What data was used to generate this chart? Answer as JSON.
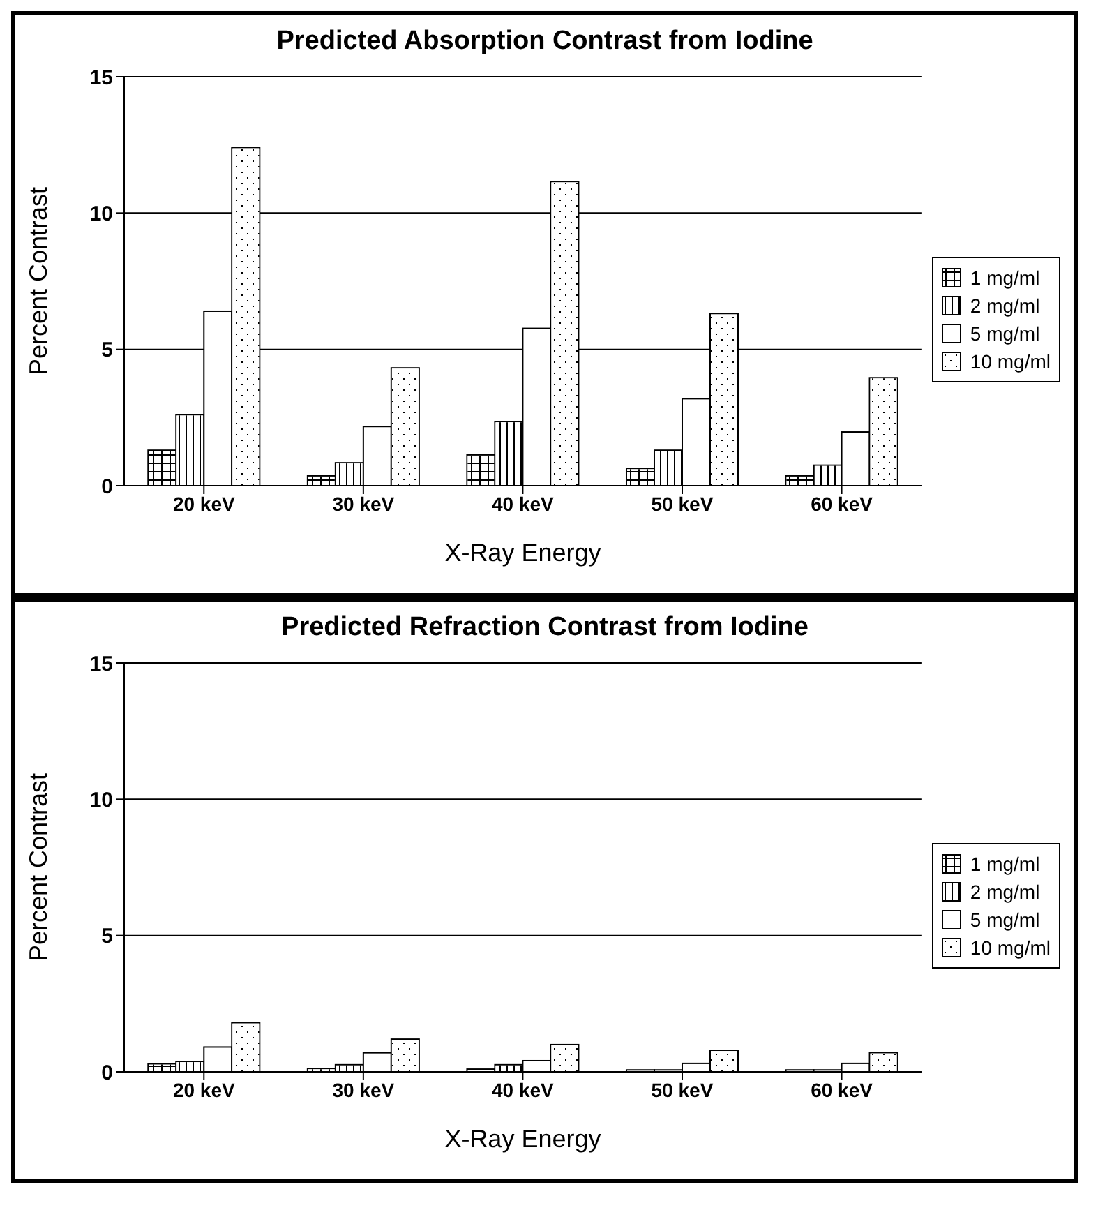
{
  "chart_data": [
    {
      "type": "bar",
      "title": "Predicted Absorption Contrast from Iodine",
      "xlabel": "X-Ray Energy",
      "ylabel": "Percent Contrast",
      "categories": [
        "20 keV",
        "30 keV",
        "40 keV",
        "50 keV",
        "60 keV"
      ],
      "series": [
        {
          "name": "1 mg/ml",
          "color": "#ffffff",
          "values": [
            1.3,
            0.36,
            1.13,
            0.63,
            0.36
          ]
        },
        {
          "name": "2 mg/ml",
          "color": "#ffffff",
          "values": [
            2.6,
            0.84,
            2.35,
            1.3,
            0.75
          ]
        },
        {
          "name": "5 mg/ml",
          "color": "#ffffff",
          "values": [
            6.4,
            2.17,
            5.77,
            3.19,
            1.97
          ]
        },
        {
          "name": "10 mg/ml",
          "color": "#ffffff",
          "values": [
            12.4,
            4.32,
            11.15,
            6.31,
            3.96
          ]
        }
      ],
      "ylim": [
        0,
        15
      ],
      "yticks": [
        0,
        5,
        10,
        15
      ],
      "grid": "y",
      "legend": "right"
    },
    {
      "type": "bar",
      "title": "Predicted Refraction Contrast from Iodine",
      "xlabel": "X-Ray Energy",
      "ylabel": "Percent Contrast",
      "categories": [
        "20 keV",
        "30 keV",
        "40 keV",
        "50 keV",
        "60 keV"
      ],
      "series": [
        {
          "name": "1 mg/ml",
          "color": "#ffffff",
          "values": [
            0.29,
            0.12,
            0.1,
            0.07,
            0.07
          ]
        },
        {
          "name": "2 mg/ml",
          "color": "#ffffff",
          "values": [
            0.38,
            0.26,
            0.26,
            0.07,
            0.07
          ]
        },
        {
          "name": "5 mg/ml",
          "color": "#ffffff",
          "values": [
            0.91,
            0.7,
            0.41,
            0.31,
            0.31
          ]
        },
        {
          "name": "10 mg/ml",
          "color": "#ffffff",
          "values": [
            1.8,
            1.2,
            1.0,
            0.79,
            0.7
          ]
        }
      ],
      "ylim": [
        0,
        15
      ],
      "yticks": [
        0,
        5,
        10,
        15
      ],
      "grid": "y",
      "legend": "right"
    }
  ]
}
